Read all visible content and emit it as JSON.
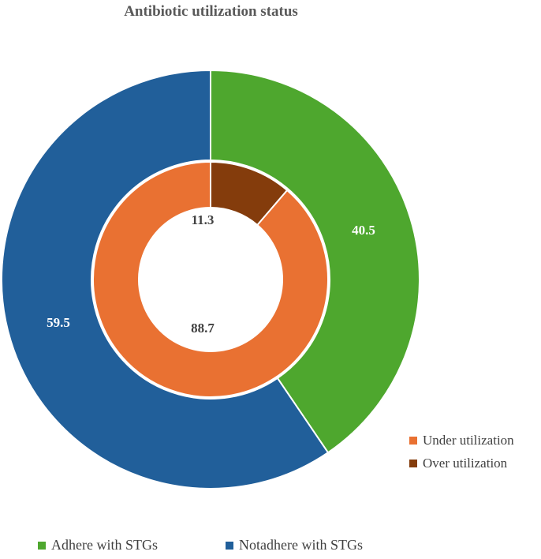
{
  "chart_data": {
    "type": "donut",
    "title": "Antibiotic utilization status",
    "rings": [
      {
        "ring": "outer",
        "series": [
          {
            "name": "Adhere with STGs",
            "value": 40.5,
            "label": "40.5",
            "color": "#4EA72E"
          },
          {
            "name": "Notadhere with STGs",
            "value": 59.5,
            "label": "59.5",
            "color": "#215F9A"
          }
        ]
      },
      {
        "ring": "inner",
        "series": [
          {
            "name": "Over utilization",
            "value": 11.3,
            "label": "11.3",
            "color": "#843C0C"
          },
          {
            "name": "Under utilization",
            "value": 88.7,
            "label": "88.7",
            "color": "#E97132"
          }
        ]
      }
    ],
    "legend_right": [
      {
        "label": "Under utilization",
        "color": "#E97132"
      },
      {
        "label": "Over utilization",
        "color": "#843C0C"
      }
    ],
    "legend_bottom": [
      {
        "label": "Adhere with STGs",
        "color": "#4EA72E"
      },
      {
        "label": "Notadhere with STGs",
        "color": "#215F9A"
      }
    ]
  }
}
